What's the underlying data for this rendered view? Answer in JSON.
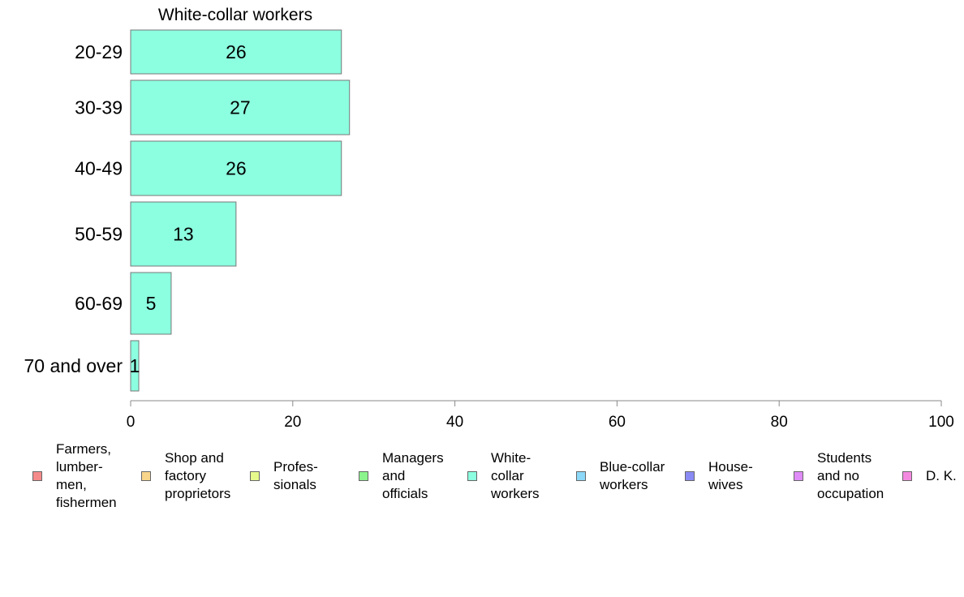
{
  "chart_data": {
    "type": "bar",
    "orientation": "horizontal",
    "title": "White-collar workers",
    "categories": [
      "20-29",
      "30-39",
      "40-49",
      "50-59",
      "60-69",
      "70 and over"
    ],
    "series": [
      {
        "name": "White-collar workers",
        "color": "#8cffe0",
        "values": [
          26,
          27,
          26,
          13,
          5,
          1
        ],
        "labels": [
          "26",
          "27",
          "26",
          "13",
          "5",
          "1"
        ]
      }
    ],
    "xlim": [
      0,
      100
    ],
    "xticks": [
      "0",
      "20",
      "40",
      "60",
      "80",
      "100"
    ],
    "xtick_values": [
      0,
      20,
      40,
      60,
      80,
      100
    ],
    "grid": false,
    "legend_position": "bottom"
  },
  "legend": {
    "items": [
      {
        "label": "Farmers,\nlumber-\nmen,\nfishermen",
        "color": "#f48a8a"
      },
      {
        "label": "Shop and\nfactory\nproprietors",
        "color": "#f8d58a"
      },
      {
        "label": "Profes-\nsionals",
        "color": "#e6fa8c"
      },
      {
        "label": "Managers\nand\nofficials",
        "color": "#8cf48c"
      },
      {
        "label": "White-\ncollar\nworkers",
        "color": "#8cffe0"
      },
      {
        "label": "Blue-collar\nworkers",
        "color": "#8cd8f8"
      },
      {
        "label": "House-\nwives",
        "color": "#8a8af4"
      },
      {
        "label": "Students\nand no\noccupation",
        "color": "#e08cf8"
      },
      {
        "label": "D. K.",
        "color": "#f48ae0"
      }
    ]
  }
}
